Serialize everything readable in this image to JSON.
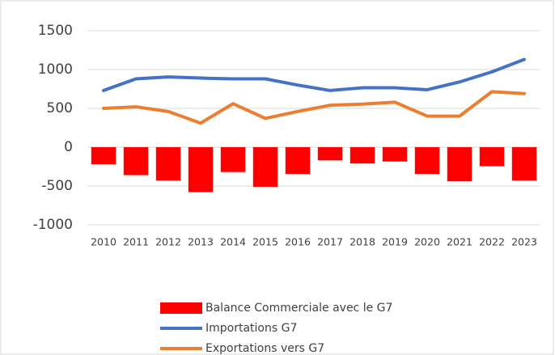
{
  "chart_data": {
    "type": "combo",
    "categories": [
      "2010",
      "2011",
      "2012",
      "2013",
      "2014",
      "2015",
      "2016",
      "2017",
      "2018",
      "2019",
      "2020",
      "2021",
      "2022",
      "2023"
    ],
    "series": [
      {
        "name": "Balance Commerciale avec le G7",
        "type": "bar",
        "color": "#ff0000",
        "values": [
          -220,
          -360,
          -430,
          -580,
          -320,
          -510,
          -345,
          -170,
          -210,
          -185,
          -345,
          -440,
          -245,
          -430
        ]
      },
      {
        "name": "Importations G7",
        "type": "line",
        "color": "#4472c4",
        "values": [
          730,
          880,
          905,
          890,
          880,
          880,
          800,
          730,
          765,
          765,
          740,
          840,
          970,
          1130
        ]
      },
      {
        "name": "Exportations vers G7",
        "type": "line",
        "color": "#ed7d31",
        "values": [
          500,
          520,
          460,
          310,
          560,
          370,
          460,
          540,
          555,
          580,
          400,
          400,
          715,
          690
        ]
      }
    ],
    "ylim": [
      -1000,
      1500
    ],
    "yticks": [
      -1000,
      -500,
      0,
      500,
      1000,
      1500
    ],
    "grid": true,
    "legend": "bottom"
  }
}
